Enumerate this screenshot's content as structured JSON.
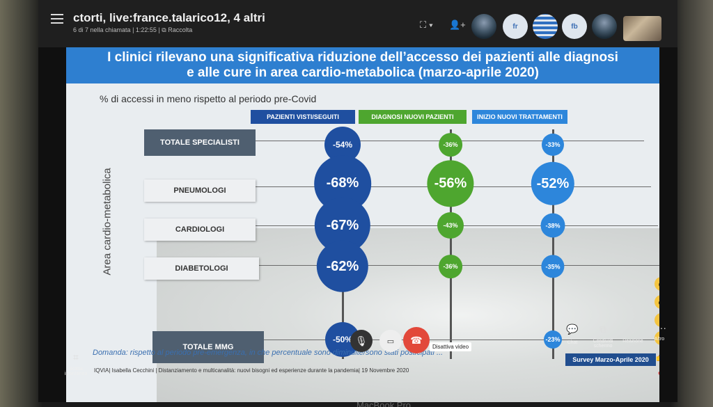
{
  "call": {
    "title": "ctorti, live:france.talarico12, 4 altri",
    "participants": "6 di 7 nella chiamata",
    "duration": "1:22:55",
    "collection_label": "Raccolta"
  },
  "participants": [
    "",
    "fr",
    "",
    "fb",
    "",
    ""
  ],
  "slide": {
    "title_line1": "I clinici rilevano una significativa riduzione dell’accesso dei pazienti alle diagnosi",
    "title_line2": "e alle cure in area cardio-metabolica (marzo-aprile 2020)",
    "subtitle": "% di accessi in meno rispetto al periodo pre-Covid",
    "question": "Domanda: rispetto al periodo pre-emergenza, in che percentuale sono diminuite/sono stati posticipati ...",
    "footer": "IQVIA| Isabella Cecchini | Distanziamento e multicanalità: nuovi bisogni ed esperienze durante la pandemia| 19 Novembre 2020",
    "survey": "Survey Marzo-Aprile 2020"
  },
  "chart_data": {
    "type": "table",
    "ylabel": "Area cardio-metabolica",
    "columns": [
      "PAZIENTI VISTI/SEGUITI",
      "DIAGNOSI NUOVI PAZIENTI",
      "INIZIO NUOVI TRATTAMENTI"
    ],
    "rows": [
      "TOTALE SPECIALISTI",
      "PNEUMOLOGI",
      "CARDIOLOGI",
      "DIABETOLOGI",
      "TOTALE MMG"
    ],
    "series": [
      {
        "values": [
          "-54%",
          "-68%",
          "-67%",
          "-62%",
          "-50%"
        ],
        "numbers": [
          -54,
          -68,
          -67,
          -62,
          -50
        ]
      },
      {
        "values": [
          "-36%",
          "-56%",
          "-43%",
          "-36%",
          ""
        ],
        "numbers": [
          -36,
          -56,
          -43,
          -36,
          null
        ]
      },
      {
        "values": [
          "-33%",
          "-52%",
          "-38%",
          "-35%",
          "-23%"
        ],
        "numbers": [
          -33,
          -52,
          -38,
          -35,
          -23
        ]
      }
    ],
    "colors": [
      "#1f4fa0",
      "#4ea62f",
      "#2d86db"
    ]
  },
  "controls": {
    "video_tooltip": "Disattiva video",
    "chat": "Chat",
    "share": "Condividi schermo",
    "reaction": "Reazione",
    "more": "Altro",
    "snapshot": "Scatta istantanea"
  },
  "device": {
    "brand": "MacBook Pro"
  }
}
